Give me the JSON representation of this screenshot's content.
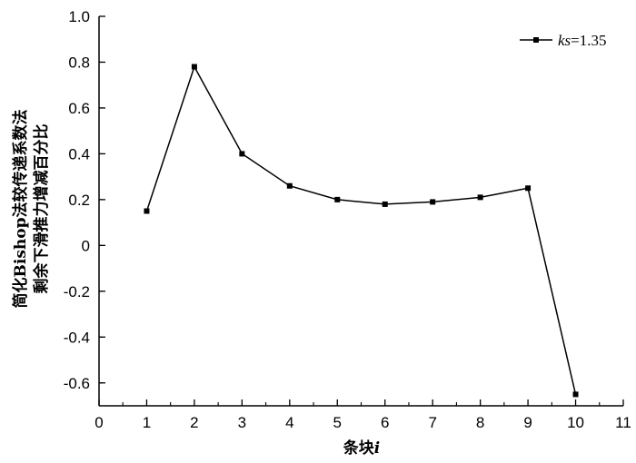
{
  "chart_data": {
    "type": "line",
    "x": [
      1,
      2,
      3,
      4,
      5,
      6,
      7,
      8,
      9,
      10
    ],
    "series": [
      {
        "name": "ks=1.35",
        "name_italic_part": "ks",
        "name_value_part": "=1.35",
        "values": [
          0.15,
          0.78,
          0.4,
          0.26,
          0.2,
          0.18,
          0.19,
          0.21,
          0.25,
          -0.65
        ]
      }
    ],
    "xlabel_main": "条块",
    "xlabel_var": "i",
    "ylabel_line1": "简化Bishop法较传递系数法",
    "ylabel_line2": "剩余下滑推力增减百分比",
    "xlim": [
      0,
      11
    ],
    "ylim": [
      -0.7,
      1.0
    ],
    "xticks": [
      0,
      1,
      2,
      3,
      4,
      5,
      6,
      7,
      8,
      9,
      10,
      11
    ],
    "yticks": [
      1.0,
      0.8,
      0.6,
      0.4,
      0.2,
      0,
      -0.2,
      -0.4,
      -0.6
    ],
    "ytick_labels": [
      "1.0",
      "0.8",
      "0.6",
      "0.4",
      "0.2",
      "0",
      "-0.2",
      "-0.4",
      "-0.6"
    ],
    "grid": false,
    "legend_position": "top-right",
    "line_color": "#000000",
    "marker": "square"
  }
}
